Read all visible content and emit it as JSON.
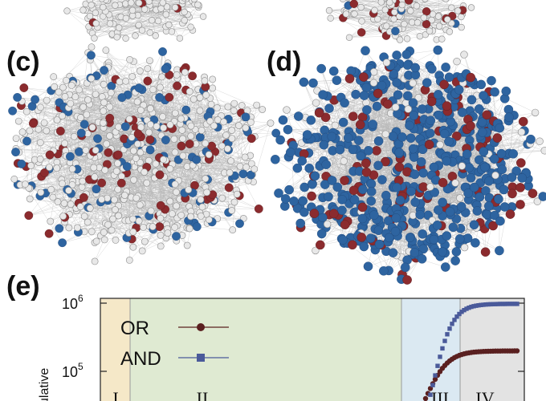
{
  "panels": {
    "c": {
      "label": "(c)"
    },
    "d": {
      "label": "(d)"
    },
    "e": {
      "label": "(e)"
    }
  },
  "colors": {
    "infected_red": "#8b2b2e",
    "informed_blue": "#2e64a0",
    "susceptible_node": "#e8e8e8",
    "edge": "#b8b8b8",
    "or_series": "#5a2020",
    "and_series": "#4a5a9a",
    "region_I": "#f5e8c8",
    "region_II": "#dfead2",
    "region_III": "#dbe9f2",
    "region_IV": "#e3e3e3"
  },
  "chart_data": {
    "type": "line",
    "ylabel": "ulative",
    "yscale": "log",
    "y_ticks": [
      {
        "base": "10",
        "exp": "6"
      },
      {
        "base": "10",
        "exp": "5"
      }
    ],
    "regions": [
      "I",
      "II",
      "III",
      "IV"
    ],
    "series": [
      {
        "name": "OR",
        "marker": "circle"
      },
      {
        "name": "AND",
        "marker": "square"
      }
    ]
  }
}
